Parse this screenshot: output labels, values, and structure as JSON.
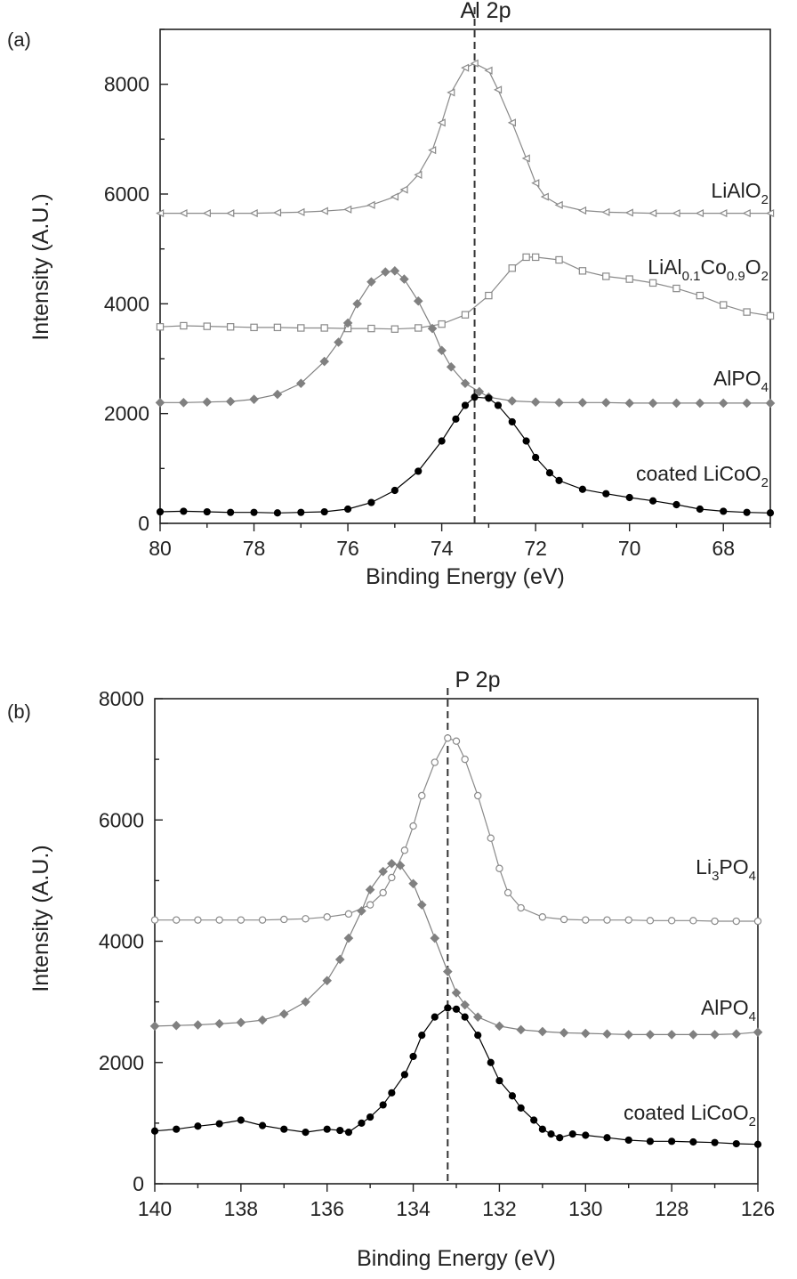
{
  "figure": {
    "panel_a_letter": "(a)",
    "panel_b_letter": "(b)"
  },
  "chart_data": [
    {
      "type": "scatter",
      "panel": "(a)",
      "title": "Al 2p",
      "xlabel": "Binding Energy (eV)",
      "ylabel": "Intensity (A.U.)",
      "xlim": [
        80,
        67
      ],
      "ylim": [
        0,
        9000
      ],
      "xticks": [
        "80",
        "78",
        "76",
        "74",
        "72",
        "70",
        "68"
      ],
      "yticks": [
        "0",
        "2000",
        "4000",
        "6000",
        "8000"
      ],
      "reference_line_x": 73.3,
      "series": [
        {
          "name": "LiAlO2",
          "label": {
            "text": "LiAlO",
            "sub": "2"
          },
          "marker": "triangle-left-open",
          "color": "#8a8a8a",
          "x": [
            80,
            79.5,
            79,
            78.5,
            78,
            77.5,
            77,
            76.5,
            76,
            75.5,
            75,
            74.8,
            74.5,
            74.2,
            74,
            73.8,
            73.5,
            73.3,
            73,
            72.8,
            72.5,
            72.2,
            72,
            71.8,
            71.5,
            71,
            70.5,
            70,
            69.5,
            69,
            68.5,
            68,
            67.5,
            67
          ],
          "y": [
            5650,
            5650,
            5650,
            5650,
            5650,
            5660,
            5670,
            5690,
            5720,
            5800,
            5950,
            6080,
            6350,
            6800,
            7300,
            7850,
            8300,
            8380,
            8250,
            7900,
            7300,
            6650,
            6200,
            5950,
            5800,
            5700,
            5670,
            5660,
            5650,
            5650,
            5650,
            5650,
            5650,
            5650
          ]
        },
        {
          "name": "LiAl0.1Co0.9O2",
          "label": {
            "text": "LiAl",
            "sub1": "0.1",
            "text2": "Co",
            "sub2": "0.9",
            "text3": "O",
            "sub3": "2"
          },
          "marker": "square-open",
          "color": "#8a8a8a",
          "x": [
            80,
            79.5,
            79,
            78.5,
            78,
            77.5,
            77,
            76.5,
            76,
            75.5,
            75,
            74.5,
            74,
            73.5,
            73,
            72.5,
            72.2,
            72,
            71.5,
            71,
            70.5,
            70,
            69.5,
            69,
            68.5,
            68,
            67.5,
            67
          ],
          "y": [
            3580,
            3600,
            3590,
            3580,
            3570,
            3570,
            3560,
            3560,
            3550,
            3550,
            3540,
            3560,
            3630,
            3800,
            4150,
            4650,
            4850,
            4850,
            4800,
            4600,
            4500,
            4450,
            4380,
            4280,
            4150,
            3980,
            3850,
            3780
          ]
        },
        {
          "name": "AlPO4",
          "label": {
            "text": "AlPO",
            "sub": "4"
          },
          "marker": "diamond-filled",
          "color": "#808080",
          "x": [
            80,
            79.5,
            79,
            78.5,
            78,
            77.5,
            77,
            76.5,
            76.2,
            76,
            75.8,
            75.5,
            75.2,
            75,
            74.8,
            74.5,
            74.2,
            74,
            73.8,
            73.5,
            73.2,
            73,
            72.5,
            72,
            71.5,
            71,
            70.5,
            70,
            69.5,
            69,
            68.5,
            68,
            67.5,
            67
          ],
          "y": [
            2200,
            2200,
            2210,
            2220,
            2260,
            2350,
            2550,
            2950,
            3300,
            3650,
            4000,
            4400,
            4580,
            4600,
            4450,
            4050,
            3550,
            3150,
            2850,
            2550,
            2400,
            2300,
            2230,
            2210,
            2200,
            2200,
            2200,
            2190,
            2190,
            2190,
            2190,
            2190,
            2190,
            2190
          ]
        },
        {
          "name": "coated LiCoO2",
          "label": {
            "text": "coated LiCoO",
            "sub": "2"
          },
          "marker": "circle-filled",
          "color": "#000000",
          "x": [
            80,
            79.5,
            79,
            78.5,
            78,
            77.5,
            77,
            76.5,
            76,
            75.5,
            75,
            74.5,
            74,
            73.7,
            73.5,
            73.3,
            73,
            72.8,
            72.5,
            72.2,
            72,
            71.7,
            71.5,
            71,
            70.5,
            70,
            69.5,
            69,
            68.5,
            68,
            67.5,
            67
          ],
          "y": [
            210,
            220,
            210,
            200,
            200,
            190,
            200,
            210,
            260,
            380,
            600,
            950,
            1500,
            1900,
            2150,
            2300,
            2280,
            2150,
            1850,
            1500,
            1200,
            920,
            780,
            620,
            540,
            470,
            410,
            340,
            260,
            220,
            200,
            190
          ]
        }
      ]
    },
    {
      "type": "scatter",
      "panel": "(b)",
      "title": "P 2p",
      "xlabel": "Binding Energy (eV)",
      "ylabel": "Intensity (A.U.)",
      "xlim": [
        140,
        126
      ],
      "ylim": [
        0,
        8000
      ],
      "xticks": [
        "140",
        "138",
        "136",
        "134",
        "132",
        "130",
        "128",
        "126"
      ],
      "yticks": [
        "0",
        "2000",
        "4000",
        "6000",
        "8000"
      ],
      "reference_line_x": 133.2,
      "series": [
        {
          "name": "Li3PO4",
          "label": {
            "text": "Li",
            "sub1": "3",
            "text2": "PO",
            "sub2": "4"
          },
          "marker": "circle-open",
          "color": "#8a8a8a",
          "x": [
            140,
            139.5,
            139,
            138.5,
            138,
            137.5,
            137,
            136.5,
            136,
            135.5,
            135,
            134.7,
            134.5,
            134.2,
            134,
            133.8,
            133.5,
            133.2,
            133,
            132.8,
            132.5,
            132.2,
            132,
            131.8,
            131.5,
            131,
            130.5,
            130,
            129.5,
            129,
            128.5,
            128,
            127.5,
            127,
            126.5,
            126
          ],
          "y": [
            4350,
            4350,
            4350,
            4350,
            4350,
            4350,
            4360,
            4370,
            4400,
            4450,
            4600,
            4800,
            5050,
            5500,
            5900,
            6400,
            6950,
            7350,
            7300,
            7000,
            6400,
            5700,
            5200,
            4800,
            4550,
            4400,
            4360,
            4350,
            4350,
            4350,
            4340,
            4340,
            4340,
            4330,
            4330,
            4330
          ]
        },
        {
          "name": "AlPO4",
          "label": {
            "text": "AlPO",
            "sub": "4"
          },
          "marker": "diamond-filled",
          "color": "#808080",
          "x": [
            140,
            139.5,
            139,
            138.5,
            138,
            137.5,
            137,
            136.5,
            136,
            135.7,
            135.5,
            135.2,
            135,
            134.7,
            134.5,
            134.3,
            134,
            133.8,
            133.5,
            133.2,
            133,
            132.8,
            132.5,
            132,
            131.5,
            131,
            130.5,
            130,
            129.5,
            129,
            128.5,
            128,
            127.5,
            127,
            126.5,
            126
          ],
          "y": [
            2600,
            2610,
            2620,
            2640,
            2660,
            2700,
            2800,
            3000,
            3350,
            3700,
            4050,
            4500,
            4850,
            5150,
            5280,
            5250,
            4950,
            4600,
            4050,
            3500,
            3150,
            2950,
            2750,
            2600,
            2540,
            2510,
            2490,
            2480,
            2470,
            2460,
            2460,
            2460,
            2460,
            2460,
            2470,
            2500
          ]
        },
        {
          "name": "coated LiCoO2",
          "label": {
            "text": "coated LiCoO",
            "sub": "2"
          },
          "marker": "circle-filled",
          "color": "#000000",
          "x": [
            140,
            139.5,
            139,
            138.5,
            138,
            137.5,
            137,
            136.5,
            136,
            135.7,
            135.5,
            135.2,
            135,
            134.7,
            134.5,
            134.2,
            134,
            133.8,
            133.5,
            133.2,
            133,
            132.8,
            132.5,
            132.2,
            132,
            131.7,
            131.5,
            131.2,
            131,
            130.8,
            130.6,
            130.3,
            130,
            129.5,
            129,
            128.5,
            128,
            127.5,
            127,
            126.5,
            126
          ],
          "y": [
            870,
            900,
            950,
            990,
            1050,
            960,
            900,
            850,
            900,
            880,
            850,
            1000,
            1100,
            1300,
            1500,
            1800,
            2100,
            2450,
            2750,
            2900,
            2880,
            2750,
            2450,
            2000,
            1700,
            1450,
            1250,
            1050,
            900,
            820,
            760,
            820,
            800,
            760,
            720,
            700,
            700,
            690,
            680,
            660,
            650
          ]
        }
      ]
    }
  ]
}
